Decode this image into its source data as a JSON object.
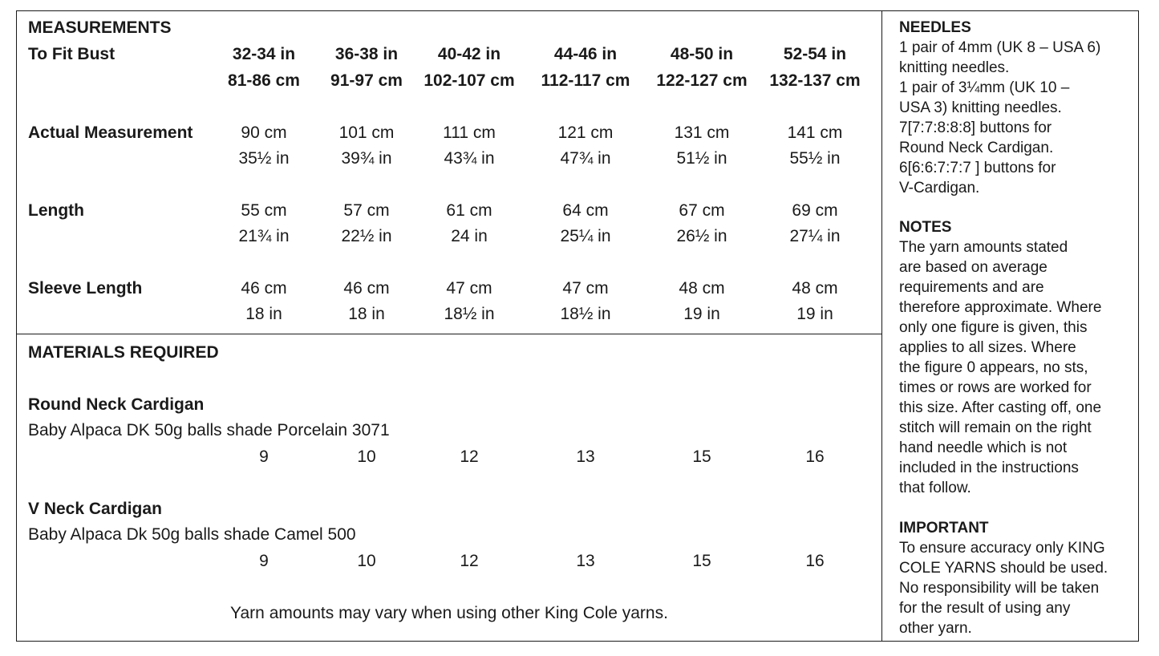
{
  "measurements": {
    "heading": "MEASUREMENTS",
    "fit_bust_label": "To Fit Bust",
    "sizes_in": [
      "32-34 in",
      "36-38 in",
      "40-42 in",
      "44-46 in",
      "48-50 in",
      "52-54 in"
    ],
    "sizes_cm": [
      "81-86 cm",
      "91-97 cm",
      "102-107 cm",
      "112-117 cm",
      "122-127 cm",
      "132-137 cm"
    ],
    "rows": [
      {
        "label": "Actual Measurement",
        "cm": [
          "90 cm",
          "101 cm",
          "111 cm",
          "121 cm",
          "131 cm",
          "141 cm"
        ],
        "in": [
          "35½ in",
          "39¾ in",
          "43¾ in",
          "47¾ in",
          "51½ in",
          "55½ in"
        ]
      },
      {
        "label": "Length",
        "cm": [
          "55 cm",
          "57 cm",
          "61 cm",
          "64 cm",
          "67 cm",
          "69 cm"
        ],
        "in": [
          "21¾ in",
          "22½ in",
          "24 in",
          "25¼ in",
          "26½ in",
          "27¼ in"
        ]
      },
      {
        "label": "Sleeve Length",
        "cm": [
          "46 cm",
          "46 cm",
          "47 cm",
          "47 cm",
          "48 cm",
          "48 cm"
        ],
        "in": [
          "18 in",
          "18 in",
          "18½ in",
          "18½ in",
          "19 in",
          "19 in"
        ]
      }
    ]
  },
  "materials": {
    "heading": "MATERIALS REQUIRED",
    "items": [
      {
        "title": "Round Neck Cardigan",
        "yarn": "Baby Alpaca DK 50g balls shade Porcelain 3071",
        "balls": [
          "9",
          "10",
          "12",
          "13",
          "15",
          "16"
        ]
      },
      {
        "title": "V Neck Cardigan",
        "yarn": "Baby Alpaca Dk 50g balls shade Camel 500",
        "balls": [
          "9",
          "10",
          "12",
          "13",
          "15",
          "16"
        ]
      }
    ],
    "footnote": "Yarn amounts may vary when using other King Cole yarns."
  },
  "sidebar": {
    "needles_heading": "NEEDLES",
    "needles_lines": [
      "1 pair of 4mm (UK 8 – USA 6)",
      "knitting needles.",
      "1 pair of 3¼mm (UK 10 –",
      "USA 3) knitting needles.",
      "7[7:7:8:8:8] buttons for",
      "Round Neck Cardigan.",
      "6[6:6:7:7:7 ] buttons for",
      "V-Cardigan."
    ],
    "notes_heading": "NOTES",
    "notes_lines": [
      "The yarn amounts stated",
      "are based on average",
      "requirements and are",
      "therefore approximate. Where",
      "only one figure is given, this",
      "applies to all sizes. Where",
      "the figure 0 appears, no sts,",
      "times or rows are worked for",
      "this size. After casting off, one",
      "stitch will remain on the right",
      "hand needle which is not",
      "included in the instructions",
      "that follow."
    ],
    "important_heading": "IMPORTANT",
    "important_lines": [
      "To ensure accuracy only KING",
      "COLE YARNS should be used.",
      "No responsibility will be taken",
      "for the result of using any",
      "other yarn."
    ]
  }
}
